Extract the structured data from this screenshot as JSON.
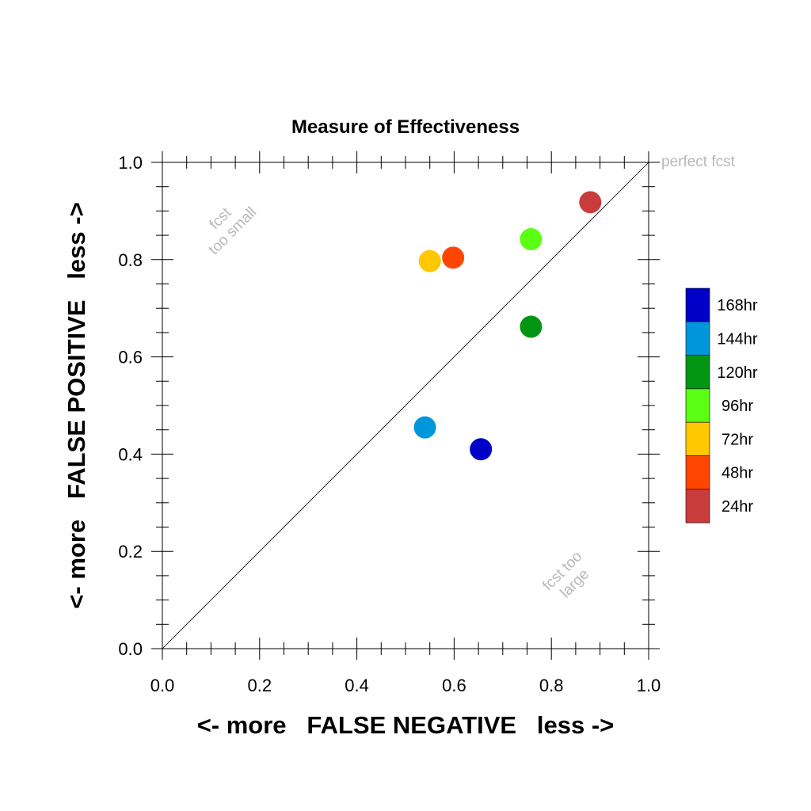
{
  "chart_data": {
    "type": "scatter",
    "title": "Measure of Effectiveness",
    "xlabel": "<- more   FALSE NEGATIVE   less ->",
    "ylabel": "<- more   FALSE POSITIVE   less ->",
    "xlim": [
      0.0,
      1.0
    ],
    "ylim": [
      0.0,
      1.0
    ],
    "xticks": [
      "0.0",
      "0.2",
      "0.4",
      "0.6",
      "0.8",
      "1.0"
    ],
    "yticks": [
      "0.0",
      "0.2",
      "0.4",
      "0.6",
      "0.8",
      "1.0"
    ],
    "grid": false,
    "diagonal_line": true,
    "annotations": {
      "perfect": "perfect fcst",
      "too_small": [
        "fcst",
        "too small"
      ],
      "too_large": [
        "fcst too",
        "large"
      ]
    },
    "legend_position": "right",
    "series": [
      {
        "name": "168hr",
        "color": "#0000c8",
        "x": 0.655,
        "y": 0.41
      },
      {
        "name": "144hr",
        "color": "#0096dc",
        "x": 0.54,
        "y": 0.455
      },
      {
        "name": "120hr",
        "color": "#009614",
        "x": 0.758,
        "y": 0.662
      },
      {
        "name": "96hr",
        "color": "#5aff14",
        "x": 0.758,
        "y": 0.842
      },
      {
        "name": "72hr",
        "color": "#ffc800",
        "x": 0.55,
        "y": 0.797
      },
      {
        "name": "48hr",
        "color": "#ff4600",
        "x": 0.598,
        "y": 0.804
      },
      {
        "name": "24hr",
        "color": "#c83c3c",
        "x": 0.88,
        "y": 0.918
      }
    ]
  }
}
